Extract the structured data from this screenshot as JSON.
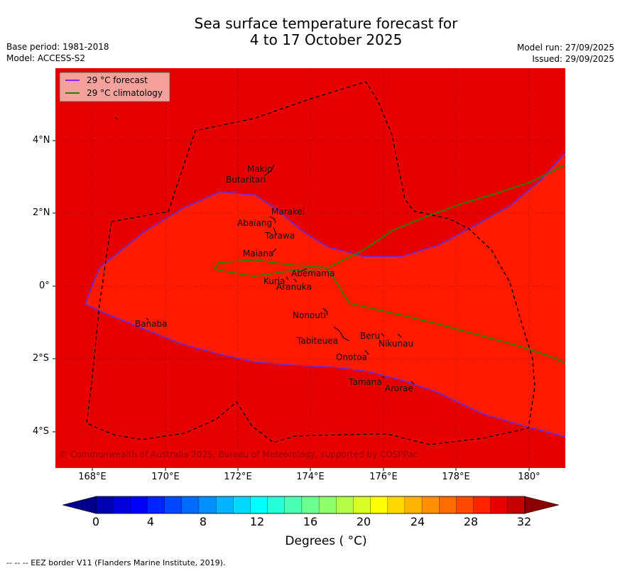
{
  "title": {
    "line1": "Sea surface temperature forecast for",
    "line2": "4 to 17 October 2025"
  },
  "meta_left": {
    "base_period": "Base period: 1981-2018",
    "model": "Model: ACCESS-S2"
  },
  "meta_right": {
    "model_run": "Model run: 27/09/2025",
    "issued": "Issued: 29/09/2025"
  },
  "legend": {
    "forecast": "29 °C  forecast",
    "climatology": "29 °C  climatology"
  },
  "map": {
    "lat_ticks": [
      "4°N",
      "2°N",
      "0°",
      "2°S",
      "4°S"
    ],
    "lon_ticks": [
      "168°E",
      "170°E",
      "172°E",
      "174°E",
      "176°E",
      "178°E",
      "180°"
    ],
    "copyright": "© Commonwealth of Australia 2025, Bureau of Meteorology, supported by COSPPac",
    "places": [
      "Makin",
      "Butaritari",
      "Marakei",
      "Abaiang",
      "Tarawa",
      "Maiana",
      "Abemama",
      "Kuria",
      "Aranuka",
      "Nonouti",
      "Banaba",
      "Beru",
      "Tabiteuea",
      "Nikunau",
      "Onotoa",
      "Tamana",
      "Arorae"
    ],
    "colors": {
      "sea_above_29": "#e60000",
      "sea_28_29": "#ff1a00",
      "forecast_line": "#6a2bd8",
      "climatology_line": "#2e7d0a",
      "eez_border": "#000000"
    }
  },
  "colorbar": {
    "ticks": [
      "0",
      "4",
      "8",
      "12",
      "16",
      "20",
      "24",
      "28",
      "32"
    ],
    "label": "Degrees ( °C)",
    "colors": [
      "#00008c",
      "#0000b4",
      "#0000dc",
      "#0000ff",
      "#0024ff",
      "#0048ff",
      "#006cff",
      "#0090ff",
      "#00b4ff",
      "#00d8ff",
      "#00ffff",
      "#24ffd8",
      "#48ffb4",
      "#6cff90",
      "#90ff6c",
      "#b4ff48",
      "#d8ff24",
      "#ffff00",
      "#ffd800",
      "#ffb400",
      "#ff9000",
      "#ff6c00",
      "#ff4800",
      "#ff2400",
      "#e60000",
      "#c80000",
      "#8b0000"
    ]
  },
  "footnote": "--  --  -- EEZ border V11 (Flanders Marine Institute, 2019)."
}
